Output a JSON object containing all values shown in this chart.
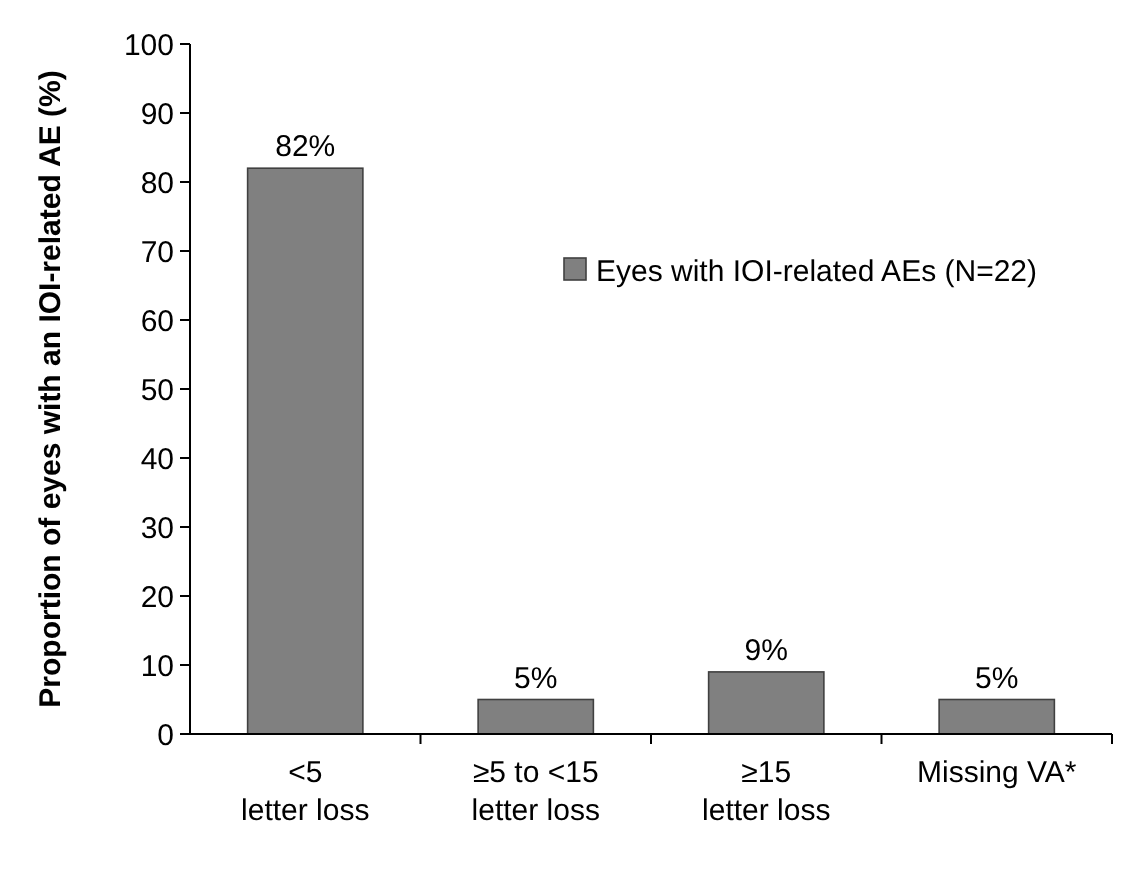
{
  "chart_data": {
    "type": "bar",
    "ylabel": "Proportion of eyes with an IOI-related AE (%)",
    "categories": [
      "<5\nletter loss",
      "≥5 to <15\nletter loss",
      "≥15\nletter loss",
      "Missing VA*"
    ],
    "series": [
      {
        "name": "Eyes with IOI-related AEs (N=22)",
        "color": "#808080",
        "values": [
          82,
          5,
          9,
          5
        ],
        "value_labels": [
          "82%",
          "5%",
          "9%",
          "5%"
        ]
      }
    ],
    "ylim": [
      0,
      100
    ],
    "yticks": [
      0,
      10,
      20,
      30,
      40,
      50,
      60,
      70,
      80,
      90,
      100
    ],
    "grid": false,
    "legend": "top right"
  }
}
